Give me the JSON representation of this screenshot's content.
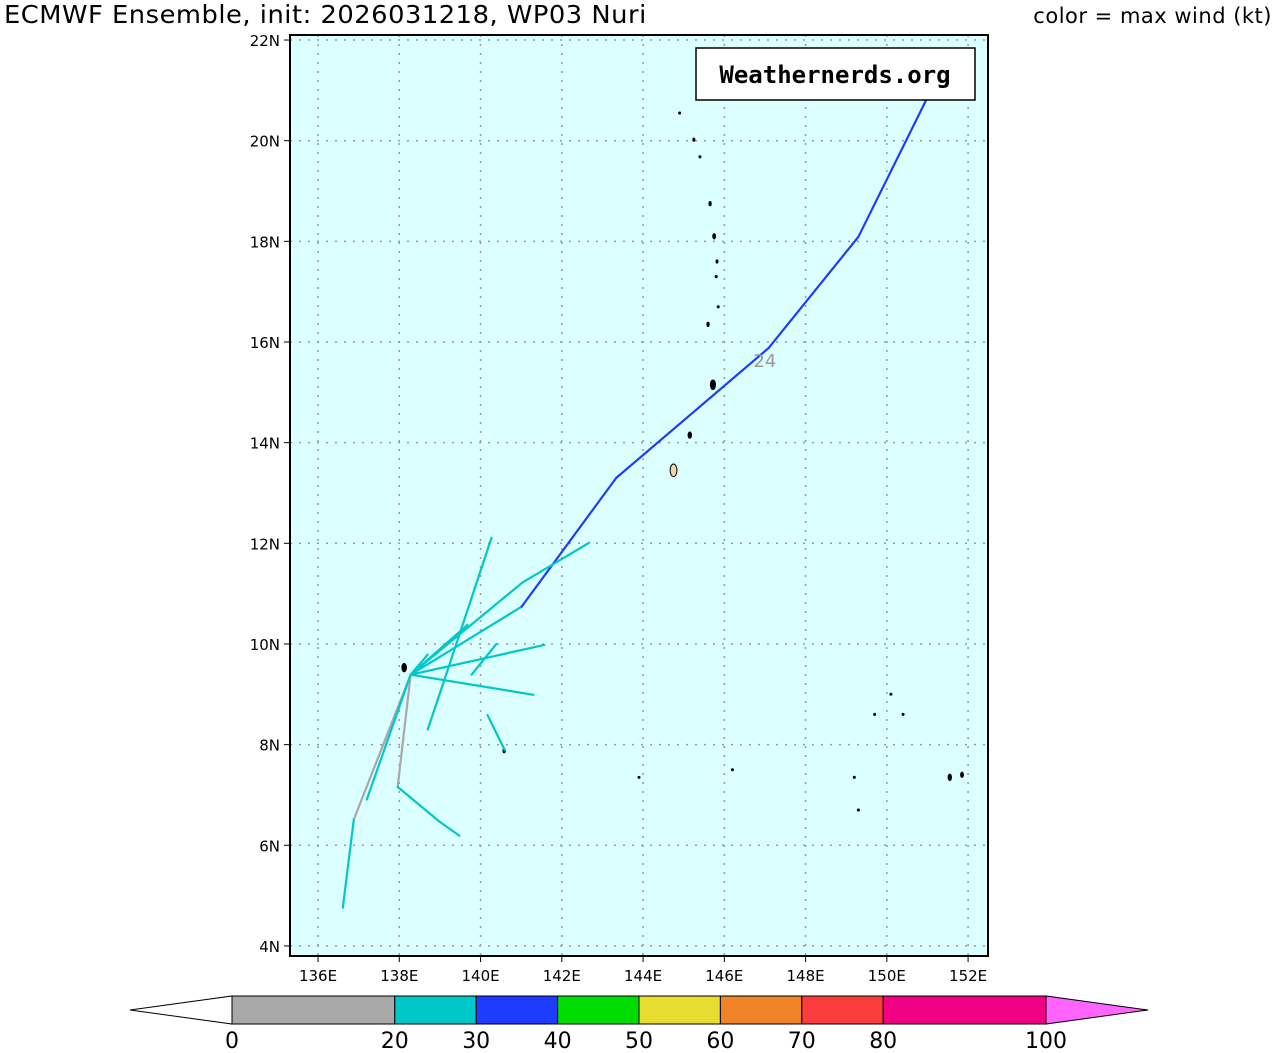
{
  "header": {
    "title": "ECMWF Ensemble, init: 2026031218, WP03 Nuri",
    "legend_note": "color = max wind (kt)"
  },
  "watermark": "Weathernerds.org",
  "chart_data": {
    "type": "map-tracks",
    "lon_range": [
      135.31,
      152.49
    ],
    "lat_range": [
      3.8,
      22.1
    ],
    "lon_ticks": [
      136,
      138,
      140,
      142,
      144,
      146,
      148,
      150,
      152
    ],
    "lon_tick_labels": [
      "136E",
      "138E",
      "140E",
      "142E",
      "144E",
      "146E",
      "148E",
      "150E",
      "152E"
    ],
    "lat_ticks": [
      4,
      6,
      8,
      10,
      12,
      14,
      16,
      18,
      20,
      22
    ],
    "lat_tick_labels": [
      "4N",
      "6N",
      "8N",
      "10N",
      "12N",
      "14N",
      "16N",
      "18N",
      "20N",
      "22N"
    ],
    "grid": true,
    "ocean_color": "#dcffff",
    "annotation": {
      "text": "24",
      "lon": 147.0,
      "lat": 15.5
    },
    "colorbar": {
      "bounds": [
        0,
        20,
        30,
        40,
        50,
        60,
        70,
        80,
        100
      ],
      "labels": [
        "0",
        "20",
        "30",
        "40",
        "50",
        "60",
        "70",
        "80",
        "100"
      ],
      "colors": [
        "#a8a8a8",
        "#00c8c8",
        "#1e3cff",
        "#00dc00",
        "#e6dc32",
        "#f08228",
        "#fa3c3c",
        "#f00082"
      ],
      "under_color": "#ffffff",
      "over_color": "#ff64ff"
    },
    "tracks": [
      {
        "points": [
          [
            138.28,
            9.39
          ],
          [
            141.01,
            10.74
          ],
          [
            143.34,
            13.3
          ],
          [
            147.09,
            15.88
          ],
          [
            149.3,
            18.09
          ],
          [
            150.97,
            20.81
          ]
        ],
        "winds": [
          25,
          35,
          35,
          35,
          35
        ]
      },
      {
        "points": [
          [
            138.28,
            9.39
          ],
          [
            141.03,
            11.22
          ],
          [
            142.67,
            12.01
          ]
        ],
        "winds": [
          25,
          25
        ]
      },
      {
        "points": [
          [
            138.7,
            8.3
          ],
          [
            139.07,
            9.19
          ],
          [
            140.27,
            12.11
          ]
        ],
        "winds": [
          25,
          25
        ]
      },
      {
        "points": [
          [
            138.28,
            9.39
          ],
          [
            141.57,
            9.98
          ]
        ],
        "winds": [
          25
        ]
      },
      {
        "points": [
          [
            138.28,
            9.39
          ],
          [
            141.3,
            8.99
          ]
        ],
        "winds": [
          25
        ]
      },
      {
        "points": [
          [
            139.78,
            9.39
          ],
          [
            140.39,
            10.0
          ]
        ],
        "winds": [
          25
        ]
      },
      {
        "points": [
          [
            140.17,
            8.59
          ],
          [
            140.59,
            7.9
          ]
        ],
        "winds": [
          25
        ]
      },
      {
        "points": [
          [
            138.28,
            9.39
          ],
          [
            139.68,
            10.38
          ]
        ],
        "winds": [
          25
        ]
      },
      {
        "points": [
          [
            138.28,
            9.39
          ],
          [
            138.7,
            9.79
          ]
        ],
        "winds": [
          25
        ]
      },
      {
        "points": [
          [
            138.28,
            9.39
          ],
          [
            137.96,
            7.16
          ],
          [
            138.99,
            6.47
          ],
          [
            139.48,
            6.19
          ]
        ],
        "winds": [
          15,
          25,
          25
        ]
      },
      {
        "points": [
          [
            138.28,
            9.39
          ],
          [
            136.88,
            6.51
          ],
          [
            136.61,
            4.76
          ]
        ],
        "winds": [
          15,
          25
        ]
      },
      {
        "points": [
          [
            138.28,
            9.39
          ],
          [
            137.2,
            6.91
          ]
        ],
        "winds": [
          25
        ]
      }
    ],
    "islands": [
      {
        "lon": 144.75,
        "lat": 13.45,
        "r": 0.12,
        "fill": "#f0d8a8"
      },
      {
        "lon": 145.15,
        "lat": 14.15,
        "r": 0.06,
        "fill": "#000"
      },
      {
        "lon": 145.72,
        "lat": 15.15,
        "r": 0.09,
        "fill": "#000"
      },
      {
        "lon": 145.6,
        "lat": 16.35,
        "r": 0.04,
        "fill": "#000"
      },
      {
        "lon": 145.85,
        "lat": 16.7,
        "r": 0.02,
        "fill": "#000"
      },
      {
        "lon": 145.8,
        "lat": 17.3,
        "r": 0.02,
        "fill": "#000"
      },
      {
        "lon": 145.82,
        "lat": 17.6,
        "r": 0.03,
        "fill": "#000"
      },
      {
        "lon": 145.75,
        "lat": 18.1,
        "r": 0.05,
        "fill": "#000"
      },
      {
        "lon": 145.65,
        "lat": 18.75,
        "r": 0.04,
        "fill": "#000"
      },
      {
        "lon": 145.4,
        "lat": 19.68,
        "r": 0.02,
        "fill": "#000"
      },
      {
        "lon": 145.25,
        "lat": 20.02,
        "r": 0.03,
        "fill": "#000"
      },
      {
        "lon": 144.9,
        "lat": 20.55,
        "r": 0.02,
        "fill": "#000"
      },
      {
        "lon": 138.12,
        "lat": 9.53,
        "r": 0.08,
        "fill": "#000"
      },
      {
        "lon": 140.58,
        "lat": 7.88,
        "r": 0.04,
        "fill": "#446"
      },
      {
        "lon": 151.55,
        "lat": 7.35,
        "r": 0.06,
        "fill": "#000"
      },
      {
        "lon": 151.85,
        "lat": 7.4,
        "r": 0.05,
        "fill": "#000"
      },
      {
        "lon": 149.2,
        "lat": 7.35,
        "r": 0.02,
        "fill": "#000"
      },
      {
        "lon": 149.7,
        "lat": 8.6,
        "r": 0.02,
        "fill": "#000"
      },
      {
        "lon": 150.4,
        "lat": 8.6,
        "r": 0.015,
        "fill": "#000"
      },
      {
        "lon": 150.1,
        "lat": 9.0,
        "r": 0.015,
        "fill": "#000"
      },
      {
        "lon": 149.3,
        "lat": 6.7,
        "r": 0.02,
        "fill": "#000"
      },
      {
        "lon": 146.2,
        "lat": 7.5,
        "r": 0.015,
        "fill": "#000"
      },
      {
        "lon": 143.9,
        "lat": 7.35,
        "r": 0.015,
        "fill": "#000"
      }
    ]
  }
}
